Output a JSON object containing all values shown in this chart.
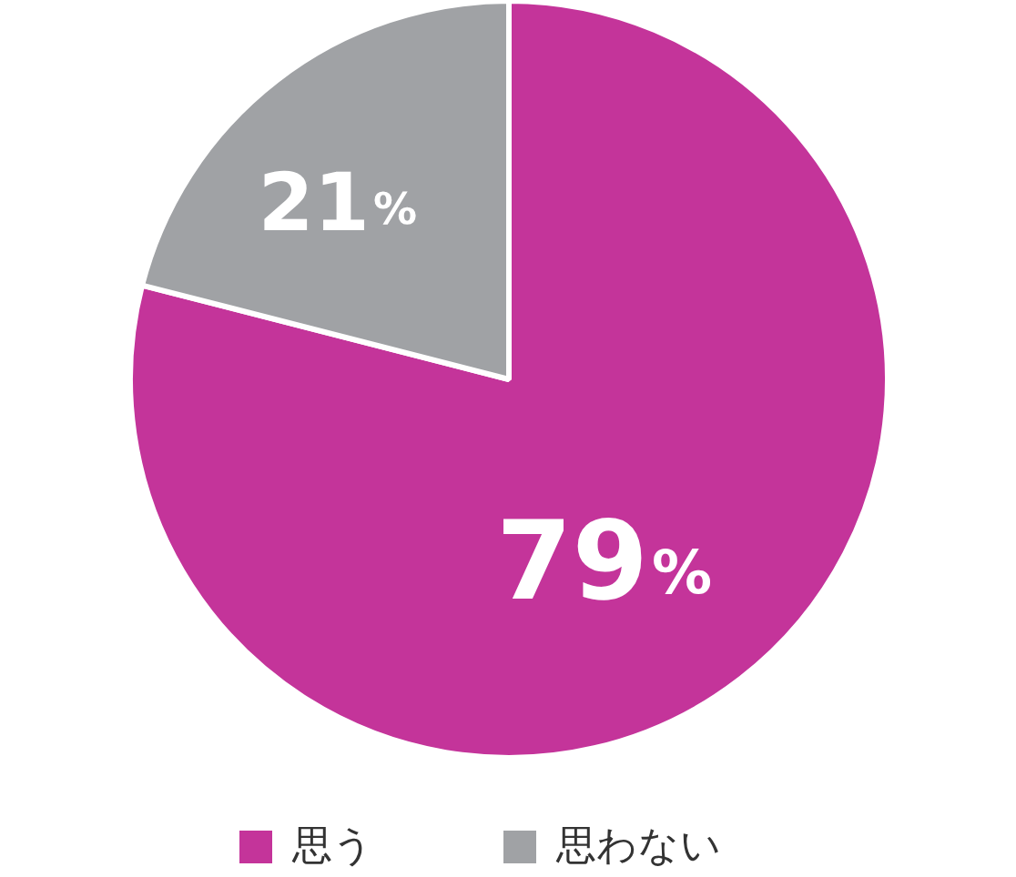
{
  "chart_data": {
    "type": "pie",
    "categories": [
      "思う",
      "思わない"
    ],
    "values": [
      79,
      21
    ],
    "colors": [
      "#c4349a",
      "#a0a2a5"
    ],
    "value_labels": [
      "79%",
      "21%"
    ],
    "legend": "bottom"
  }
}
